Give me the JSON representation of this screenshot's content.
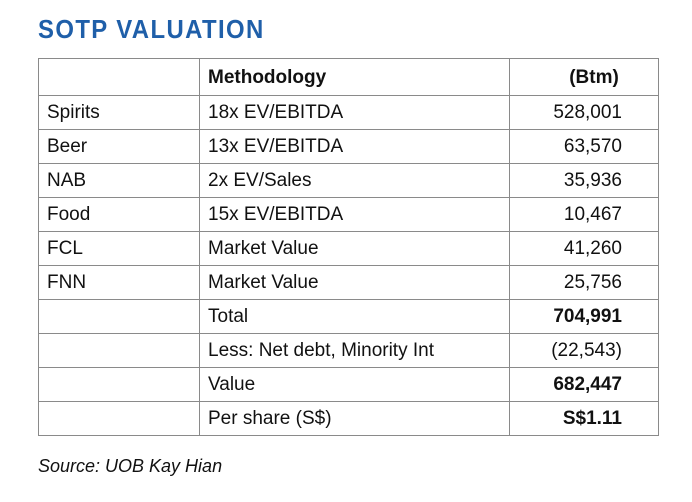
{
  "title": "SOTP VALUATION",
  "table": {
    "headers": [
      "",
      "Methodology",
      "(Btm)"
    ],
    "rows": [
      {
        "segment": "Spirits",
        "methodology": "18x EV/EBITDA",
        "value": "528,001"
      },
      {
        "segment": "Beer",
        "methodology": "13x EV/EBITDA",
        "value": "63,570"
      },
      {
        "segment": "NAB",
        "methodology": "2x EV/Sales",
        "value": "35,936"
      },
      {
        "segment": "Food",
        "methodology": "15x EV/EBITDA",
        "value": "10,467"
      },
      {
        "segment": "FCL",
        "methodology": "Market Value",
        "value": "41,260"
      },
      {
        "segment": "FNN",
        "methodology": "Market Value",
        "value": "25,756"
      },
      {
        "segment": "",
        "methodology": "Total",
        "value": "704,991"
      },
      {
        "segment": "",
        "methodology": "Less: Net debt, Minority Int",
        "value": "(22,543)"
      },
      {
        "segment": "",
        "methodology": "Value",
        "value": "682,447"
      },
      {
        "segment": "",
        "methodology": "Per share (S$)",
        "value": "S$1.11"
      }
    ]
  },
  "source": "Source: UOB Kay Hian"
}
